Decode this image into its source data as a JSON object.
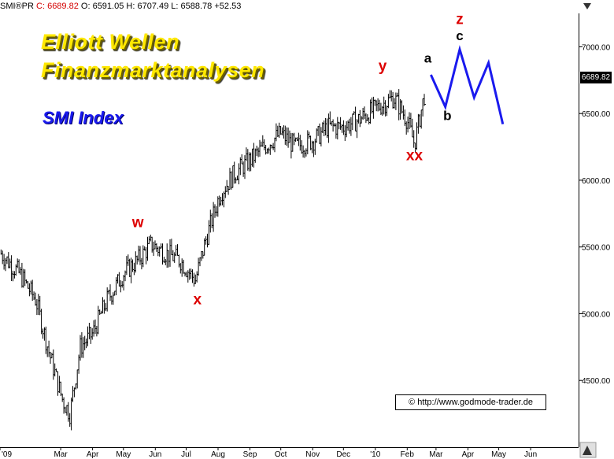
{
  "quote": {
    "symbol": "SMI®PR",
    "close": "C: 6689.82",
    "open": "O: 6591.05",
    "high": "H: 6707.49",
    "low": "L: 6588.78",
    "change": "+52.53"
  },
  "title": {
    "line1": "Elliott Wellen",
    "line2": "Finanzmarktanalysen",
    "subtitle": "SMI Index"
  },
  "copyright": "© http://www.godmode-trader.de",
  "colors": {
    "title": "#ffe800",
    "subtitle": "#1a1aee",
    "wave_label_red": "#dd0000",
    "wave_label_black": "#000000",
    "projection": "#1a1aee",
    "candles": "#000000"
  },
  "icons": {
    "sort_down": "triangle-down-icon",
    "sort_up": "triangle-up-icon"
  },
  "chart_data": {
    "type": "line",
    "title": "",
    "xlabel": "",
    "ylabel": "",
    "x_tick_labels": [
      "'09",
      "Mar",
      "Apr",
      "May",
      "Jun",
      "Jul",
      "Aug",
      "Sep",
      "Oct",
      "Nov",
      "Dec",
      "'10",
      "Feb",
      "Mar",
      "Apr",
      "May",
      "Jun"
    ],
    "y_tick_labels": [
      "4500.00",
      "5000.00",
      "5500.00",
      "6000.00",
      "6500.00",
      "7000.00"
    ],
    "ylim": [
      4000,
      7250
    ],
    "last_price": "6689.82",
    "grid": false,
    "series": [
      {
        "style": "bars",
        "x": [
          "2009-01-02",
          "2009-01-20",
          "2009-02-05",
          "2009-02-18",
          "2009-03-03",
          "2009-03-10",
          "2009-03-20",
          "2009-04-01",
          "2009-04-15",
          "2009-05-01",
          "2009-05-15",
          "2009-05-28",
          "2009-06-12",
          "2009-06-25",
          "2009-07-10",
          "2009-07-20",
          "2009-08-03",
          "2009-08-17",
          "2009-09-01",
          "2009-09-15",
          "2009-10-01",
          "2009-10-15",
          "2009-11-02",
          "2009-11-16",
          "2009-12-01",
          "2009-12-15",
          "2010-01-04",
          "2010-01-19",
          "2010-02-01",
          "2010-02-08",
          "2010-02-19"
        ],
        "y": [
          5450,
          5300,
          5100,
          4700,
          4350,
          4250,
          4750,
          4850,
          5100,
          5300,
          5400,
          5520,
          5450,
          5400,
          5250,
          5550,
          5900,
          6050,
          6150,
          6250,
          6350,
          6250,
          6300,
          6400,
          6400,
          6450,
          6550,
          6620,
          6450,
          6270,
          6690
        ]
      },
      {
        "name": "",
        "style": "projection",
        "x": [
          "2010-02-24",
          "2010-03-10",
          "2010-03-24",
          "2010-04-07",
          "2010-04-21",
          "2010-05-05"
        ],
        "y": [
          6790,
          6550,
          6980,
          6620,
          6880,
          6420
        ]
      }
    ],
    "wave_labels": [
      {
        "text": "w",
        "x": "2009-05-15",
        "y": 5650,
        "color": "#dd0000"
      },
      {
        "text": "x",
        "x": "2009-07-12",
        "y": 5070,
        "color": "#dd0000"
      },
      {
        "text": "y",
        "x": "2010-01-08",
        "y": 6820,
        "color": "#dd0000"
      },
      {
        "text": "xx",
        "x": "2010-02-08",
        "y": 6150,
        "color": "#dd0000"
      },
      {
        "text": "a",
        "x": "2010-02-21",
        "y": 6880,
        "color": "#000000"
      },
      {
        "text": "b",
        "x": "2010-03-12",
        "y": 6450,
        "color": "#000000"
      },
      {
        "text": "c",
        "x": "2010-03-24",
        "y": 7050,
        "color": "#000000"
      },
      {
        "text": "z",
        "x": "2010-03-24",
        "y": 7170,
        "color": "#dd0000"
      }
    ]
  }
}
